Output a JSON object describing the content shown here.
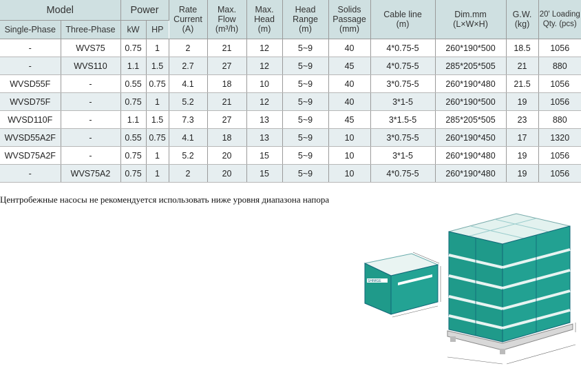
{
  "header": {
    "model": "Model",
    "single_phase": "Single-Phase",
    "three_phase": "Three-Phase",
    "power": "Power",
    "kw": "kW",
    "hp": "HP",
    "rate_current_1": "Rate",
    "rate_current_2": "Current",
    "rate_current_3": "(A)",
    "max_flow_1": "Max.",
    "max_flow_2": "Flow",
    "max_flow_3": "(m³/h)",
    "max_head_1": "Max.",
    "max_head_2": "Head",
    "max_head_3": "(m)",
    "head_range_1": "Head",
    "head_range_2": "Range",
    "head_range_3": "(m)",
    "solids_1": "Solids",
    "solids_2": "Passage",
    "solids_3": "(mm)",
    "cable_1": "Cable line",
    "cable_2": "(m)",
    "dim_1": "Dim.mm",
    "dim_2": "(L×W×H)",
    "gw_1": "G.W.",
    "gw_2": "(kg)",
    "loading_1": "20' Loading",
    "loading_2": "Qty. (pcs)"
  },
  "rows": [
    [
      "-",
      "WVS75",
      "0.75",
      "1",
      "2",
      "21",
      "12",
      "5~9",
      "40",
      "4*0.75-5",
      "260*190*500",
      "18.5",
      "1056"
    ],
    [
      "-",
      "WVS110",
      "1.1",
      "1.5",
      "2.7",
      "27",
      "12",
      "5~9",
      "45",
      "4*0.75-5",
      "285*205*505",
      "21",
      "880"
    ],
    [
      "WVSD55F",
      "-",
      "0.55",
      "0.75",
      "4.1",
      "18",
      "10",
      "5~9",
      "40",
      "3*0.75-5",
      "260*190*480",
      "21.5",
      "1056"
    ],
    [
      "WVSD75F",
      "-",
      "0.75",
      "1",
      "5.2",
      "21",
      "12",
      "5~9",
      "40",
      "3*1-5",
      "260*190*500",
      "19",
      "1056"
    ],
    [
      "WVSD110F",
      "-",
      "1.1",
      "1.5",
      "7.3",
      "27",
      "13",
      "5~9",
      "45",
      "3*1.5-5",
      "285*205*505",
      "23",
      "880"
    ],
    [
      "WVSD55A2F",
      "-",
      "0.55",
      "0.75",
      "4.1",
      "18",
      "13",
      "5~9",
      "10",
      "3*0.75-5",
      "260*190*450",
      "17",
      "1320"
    ],
    [
      "WVSD75A2F",
      "-",
      "0.75",
      "1",
      "5.2",
      "20",
      "15",
      "5~9",
      "10",
      "3*1-5",
      "260*190*480",
      "19",
      "1056"
    ],
    [
      "-",
      "WVS75A2",
      "0.75",
      "1",
      "2",
      "20",
      "15",
      "5~9",
      "10",
      "4*0.75-5",
      "260*190*480",
      "19",
      "1056"
    ]
  ],
  "note": "Центробежные насосы не рекомендуется использовать ниже уровня диапазона напора",
  "box_label": "SHIMGE",
  "colors": {
    "header_bg": "#cfe0e1",
    "alt_row": "#e6eef0",
    "box_teal": "#1f9a8a"
  }
}
